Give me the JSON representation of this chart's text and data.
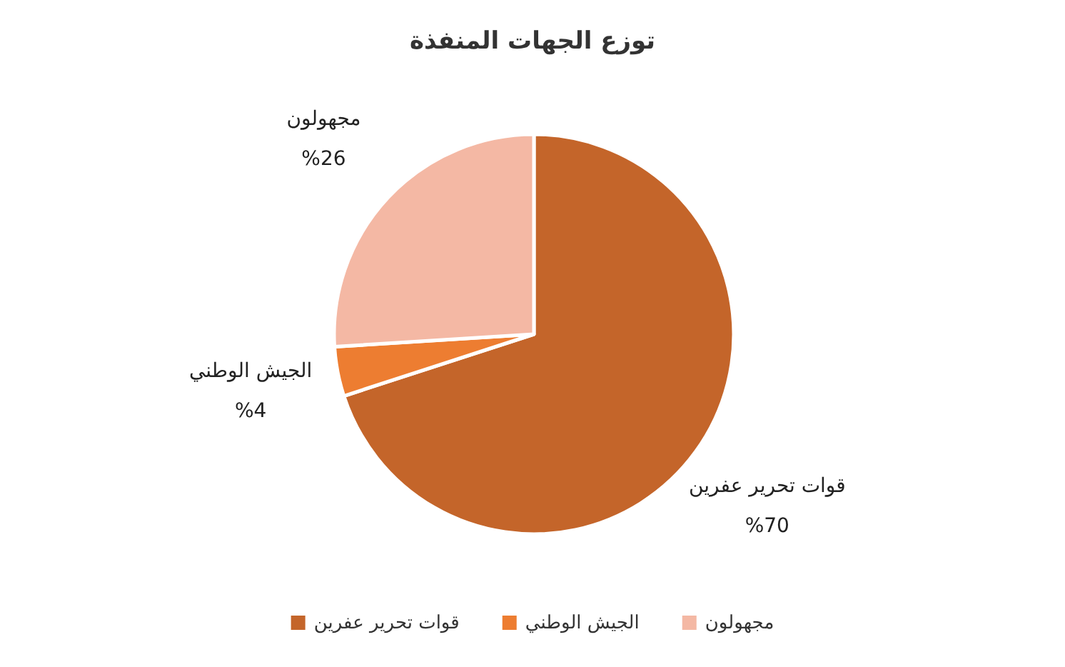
{
  "chart_data": {
    "type": "pie",
    "title": "توزع الجهات المنفذة",
    "categories": [
      "قوات تحرير عفرين",
      "الجيش الوطني",
      "مجهولون"
    ],
    "values": [
      70,
      4,
      26
    ],
    "colors": [
      "#c4652a",
      "#ed7d31",
      "#f4b8a4"
    ],
    "value_labels": [
      "%70",
      "%4",
      "%26"
    ],
    "legend": "bottom"
  }
}
